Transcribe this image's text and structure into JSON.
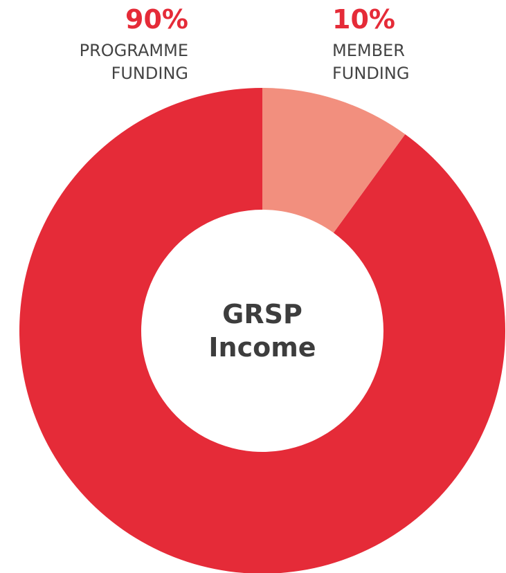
{
  "chart_data": {
    "type": "donut",
    "center_label": "GRSP Income",
    "categories": [
      "PROGRAMME FUNDING",
      "MEMBER FUNDING"
    ],
    "values": [
      90,
      10
    ],
    "value_labels": [
      "90%",
      "10%"
    ],
    "colors": [
      "#e52b38",
      "#f28f7e"
    ]
  }
}
